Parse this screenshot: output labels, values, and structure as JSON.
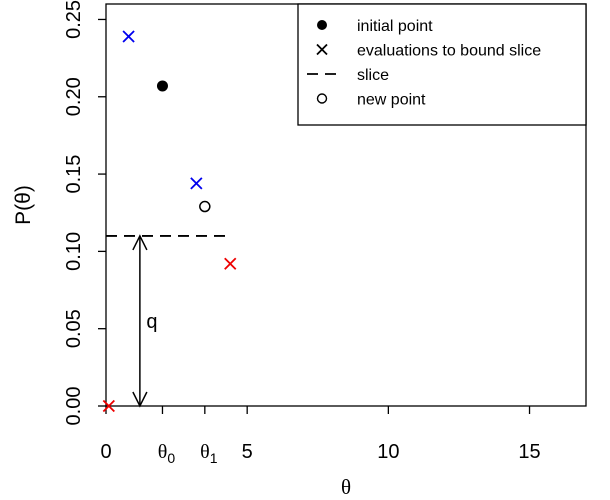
{
  "chart_data": {
    "type": "scatter",
    "title": "",
    "xlabel": "θ",
    "ylabel": "P(θ)",
    "xlim": [
      0,
      17
    ],
    "ylim": [
      0,
      0.26
    ],
    "grid": false,
    "legend_placement": "top-right",
    "x_ticks": [
      0,
      5,
      10,
      15
    ],
    "x_tick_labels": [
      "0",
      "5",
      "10",
      "15"
    ],
    "y_ticks": [
      0.0,
      0.05,
      0.1,
      0.15,
      0.2,
      0.25
    ],
    "y_tick_labels": [
      "0.00",
      "0.05",
      "0.10",
      "0.15",
      "0.20",
      "0.25"
    ],
    "special_ticks": [
      {
        "x": 2.0,
        "label_main": "θ",
        "label_sub": "0"
      },
      {
        "x": 3.5,
        "label_main": "θ",
        "label_sub": "1"
      }
    ],
    "points": [
      {
        "role": "initial point",
        "x": 2.0,
        "y": 0.207,
        "marker": "filled-circle",
        "color": "#000000"
      },
      {
        "role": "evaluation",
        "x": 0.8,
        "y": 0.239,
        "marker": "cross",
        "color": "#0000ee"
      },
      {
        "role": "evaluation",
        "x": 3.2,
        "y": 0.144,
        "marker": "cross",
        "color": "#0000ee"
      },
      {
        "role": "evaluation",
        "x": 4.4,
        "y": 0.092,
        "marker": "cross",
        "color": "#ee0000"
      },
      {
        "role": "evaluation",
        "x": 0.1,
        "y": 0.0,
        "marker": "cross",
        "color": "#ee0000"
      },
      {
        "role": "new point",
        "x": 3.5,
        "y": 0.129,
        "marker": "open-circle",
        "color": "#000000"
      }
    ],
    "slice": {
      "y": 0.11,
      "x_start": 0,
      "x_end": 4.3,
      "style": "dashed",
      "color": "#000000"
    },
    "q_arrow": {
      "x": 1.2,
      "y_from": 0.0,
      "y_to": 0.11,
      "label": "q"
    },
    "legend": [
      {
        "marker": "filled-circle",
        "label": "initial point"
      },
      {
        "marker": "cross",
        "label": "evaluations to bound slice"
      },
      {
        "marker": "dash",
        "label": "slice"
      },
      {
        "marker": "open-circle",
        "label": "new point"
      }
    ]
  }
}
